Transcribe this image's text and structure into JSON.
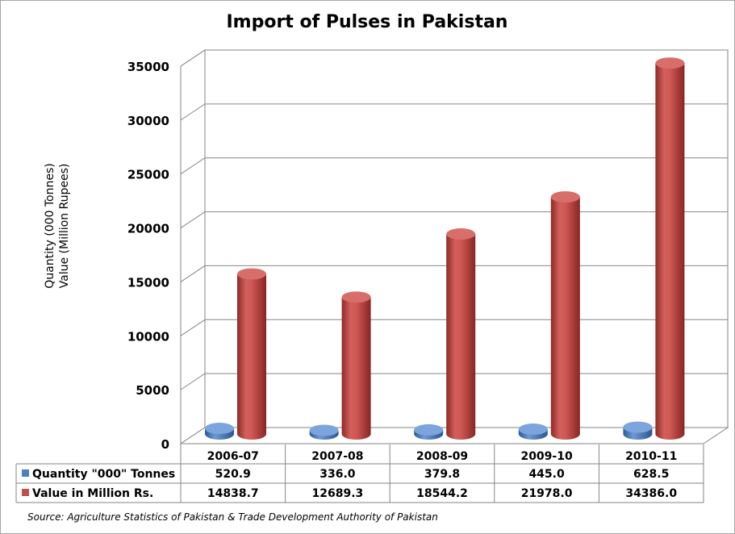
{
  "chart_data": {
    "type": "bar",
    "title": "Import of Pulses in Pakistan",
    "ylabel_line1": "Quantity (000 Tonnes)",
    "ylabel_line2": "Value (Million Rupees)",
    "categories": [
      "2006-07",
      "2007-08",
      "2008-09",
      "2009-10",
      "2010-11"
    ],
    "yticks": [
      "0",
      "5000",
      "10000",
      "15000",
      "20000",
      "25000",
      "30000",
      "35000"
    ],
    "ylim": [
      0,
      35000
    ],
    "grid": true,
    "legend_placement": "data-table",
    "series": [
      {
        "name": "Quantity \"000\" Tonnes",
        "values": [
          520.9,
          336.0,
          379.8,
          445.0,
          628.5
        ],
        "labels": [
          "520.9",
          "336.0",
          "379.8",
          "445.0",
          "628.5"
        ],
        "color": "#4f81bd"
      },
      {
        "name": "Value in Million Rs.",
        "values": [
          14838.7,
          12689.3,
          18544.2,
          21978.0,
          34386.0
        ],
        "labels": [
          "14838.7",
          "12689.3",
          "18544.2",
          "21978.0",
          "34386.0"
        ],
        "color": "#c0504d"
      }
    ],
    "source": "Source: Agriculture Statistics of Pakistan  & Trade Development Authority of Pakistan"
  }
}
